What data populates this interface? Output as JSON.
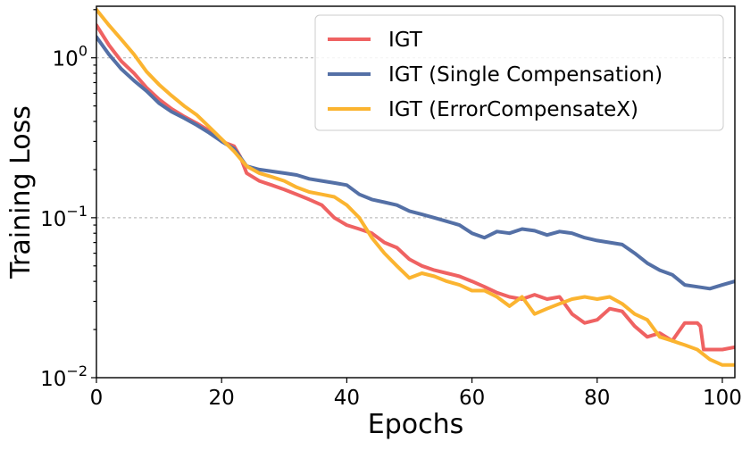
{
  "chart_data": {
    "type": "line",
    "title": "",
    "xlabel": "Epochs",
    "ylabel": "Training Loss",
    "xlim": [
      0,
      102
    ],
    "ylim": [
      0.01,
      2.1
    ],
    "yscale": "log",
    "grid": "horizontal dashed at decades",
    "x_ticks": [
      0,
      20,
      40,
      60,
      80,
      100
    ],
    "x_tick_labels": [
      "0",
      "20",
      "40",
      "60",
      "80",
      "100"
    ],
    "y_ticks": [
      {
        "value": 1,
        "base": "10",
        "exp": "0"
      },
      {
        "value": 0.1,
        "base": "10",
        "exp": "−1"
      },
      {
        "value": 0.01,
        "base": "10",
        "exp": "−2"
      }
    ],
    "legend_position": "top-right",
    "series": [
      {
        "name": "IGT",
        "color": "#ef6262",
        "x": [
          0,
          2,
          4,
          6,
          8,
          10,
          12,
          14,
          16,
          18,
          20,
          22,
          23,
          24,
          26,
          28,
          30,
          32,
          34,
          36,
          38,
          40,
          42,
          44,
          46,
          48,
          50,
          52,
          54,
          56,
          58,
          60,
          62,
          64,
          66,
          68,
          70,
          72,
          74,
          76,
          78,
          80,
          82,
          84,
          86,
          88,
          90,
          92,
          94,
          96,
          96.5,
          97,
          98,
          100,
          102
        ],
        "y": [
          1.6,
          1.2,
          0.95,
          0.8,
          0.65,
          0.55,
          0.48,
          0.43,
          0.39,
          0.35,
          0.3,
          0.28,
          0.24,
          0.19,
          0.17,
          0.16,
          0.15,
          0.14,
          0.13,
          0.12,
          0.1,
          0.09,
          0.085,
          0.08,
          0.07,
          0.065,
          0.055,
          0.05,
          0.047,
          0.045,
          0.043,
          0.04,
          0.037,
          0.034,
          0.032,
          0.031,
          0.033,
          0.031,
          0.032,
          0.025,
          0.022,
          0.023,
          0.027,
          0.026,
          0.021,
          0.018,
          0.019,
          0.017,
          0.022,
          0.022,
          0.021,
          0.015,
          0.015,
          0.015,
          0.0155
        ]
      },
      {
        "name": "IGT (Single Compensation)",
        "color": "#5470a6",
        "x": [
          0,
          2,
          4,
          6,
          8,
          10,
          12,
          14,
          16,
          18,
          20,
          22,
          24,
          26,
          28,
          30,
          32,
          34,
          36,
          38,
          40,
          42,
          44,
          46,
          48,
          50,
          52,
          54,
          56,
          58,
          60,
          62,
          64,
          66,
          68,
          70,
          72,
          74,
          76,
          78,
          80,
          82,
          84,
          86,
          88,
          90,
          92,
          94,
          96,
          98,
          100,
          102
        ],
        "y": [
          1.35,
          1.05,
          0.85,
          0.72,
          0.62,
          0.52,
          0.46,
          0.42,
          0.38,
          0.34,
          0.3,
          0.27,
          0.21,
          0.2,
          0.195,
          0.19,
          0.185,
          0.175,
          0.17,
          0.165,
          0.16,
          0.14,
          0.13,
          0.125,
          0.12,
          0.11,
          0.105,
          0.1,
          0.095,
          0.09,
          0.08,
          0.075,
          0.082,
          0.08,
          0.085,
          0.083,
          0.078,
          0.082,
          0.08,
          0.075,
          0.072,
          0.07,
          0.068,
          0.06,
          0.052,
          0.047,
          0.044,
          0.038,
          0.037,
          0.036,
          0.038,
          0.04
        ]
      },
      {
        "name": "IGT (ErrorCompensateX)",
        "color": "#fbb430",
        "x": [
          0,
          2,
          4,
          6,
          8,
          10,
          12,
          14,
          16,
          18,
          20,
          22,
          24,
          26,
          28,
          30,
          32,
          34,
          36,
          38,
          40,
          42,
          44,
          46,
          48,
          50,
          52,
          54,
          56,
          58,
          60,
          62,
          64,
          66,
          68,
          70,
          72,
          74,
          76,
          78,
          80,
          82,
          84,
          86,
          88,
          90,
          92,
          94,
          96,
          98,
          100,
          102
        ],
        "y": [
          2.0,
          1.6,
          1.3,
          1.05,
          0.82,
          0.68,
          0.58,
          0.5,
          0.44,
          0.37,
          0.31,
          0.26,
          0.21,
          0.19,
          0.18,
          0.17,
          0.155,
          0.145,
          0.14,
          0.135,
          0.12,
          0.1,
          0.075,
          0.06,
          0.05,
          0.042,
          0.045,
          0.043,
          0.04,
          0.038,
          0.035,
          0.035,
          0.032,
          0.028,
          0.032,
          0.025,
          0.027,
          0.029,
          0.031,
          0.032,
          0.031,
          0.032,
          0.029,
          0.025,
          0.023,
          0.018,
          0.017,
          0.016,
          0.015,
          0.013,
          0.012,
          0.012
        ]
      }
    ]
  }
}
